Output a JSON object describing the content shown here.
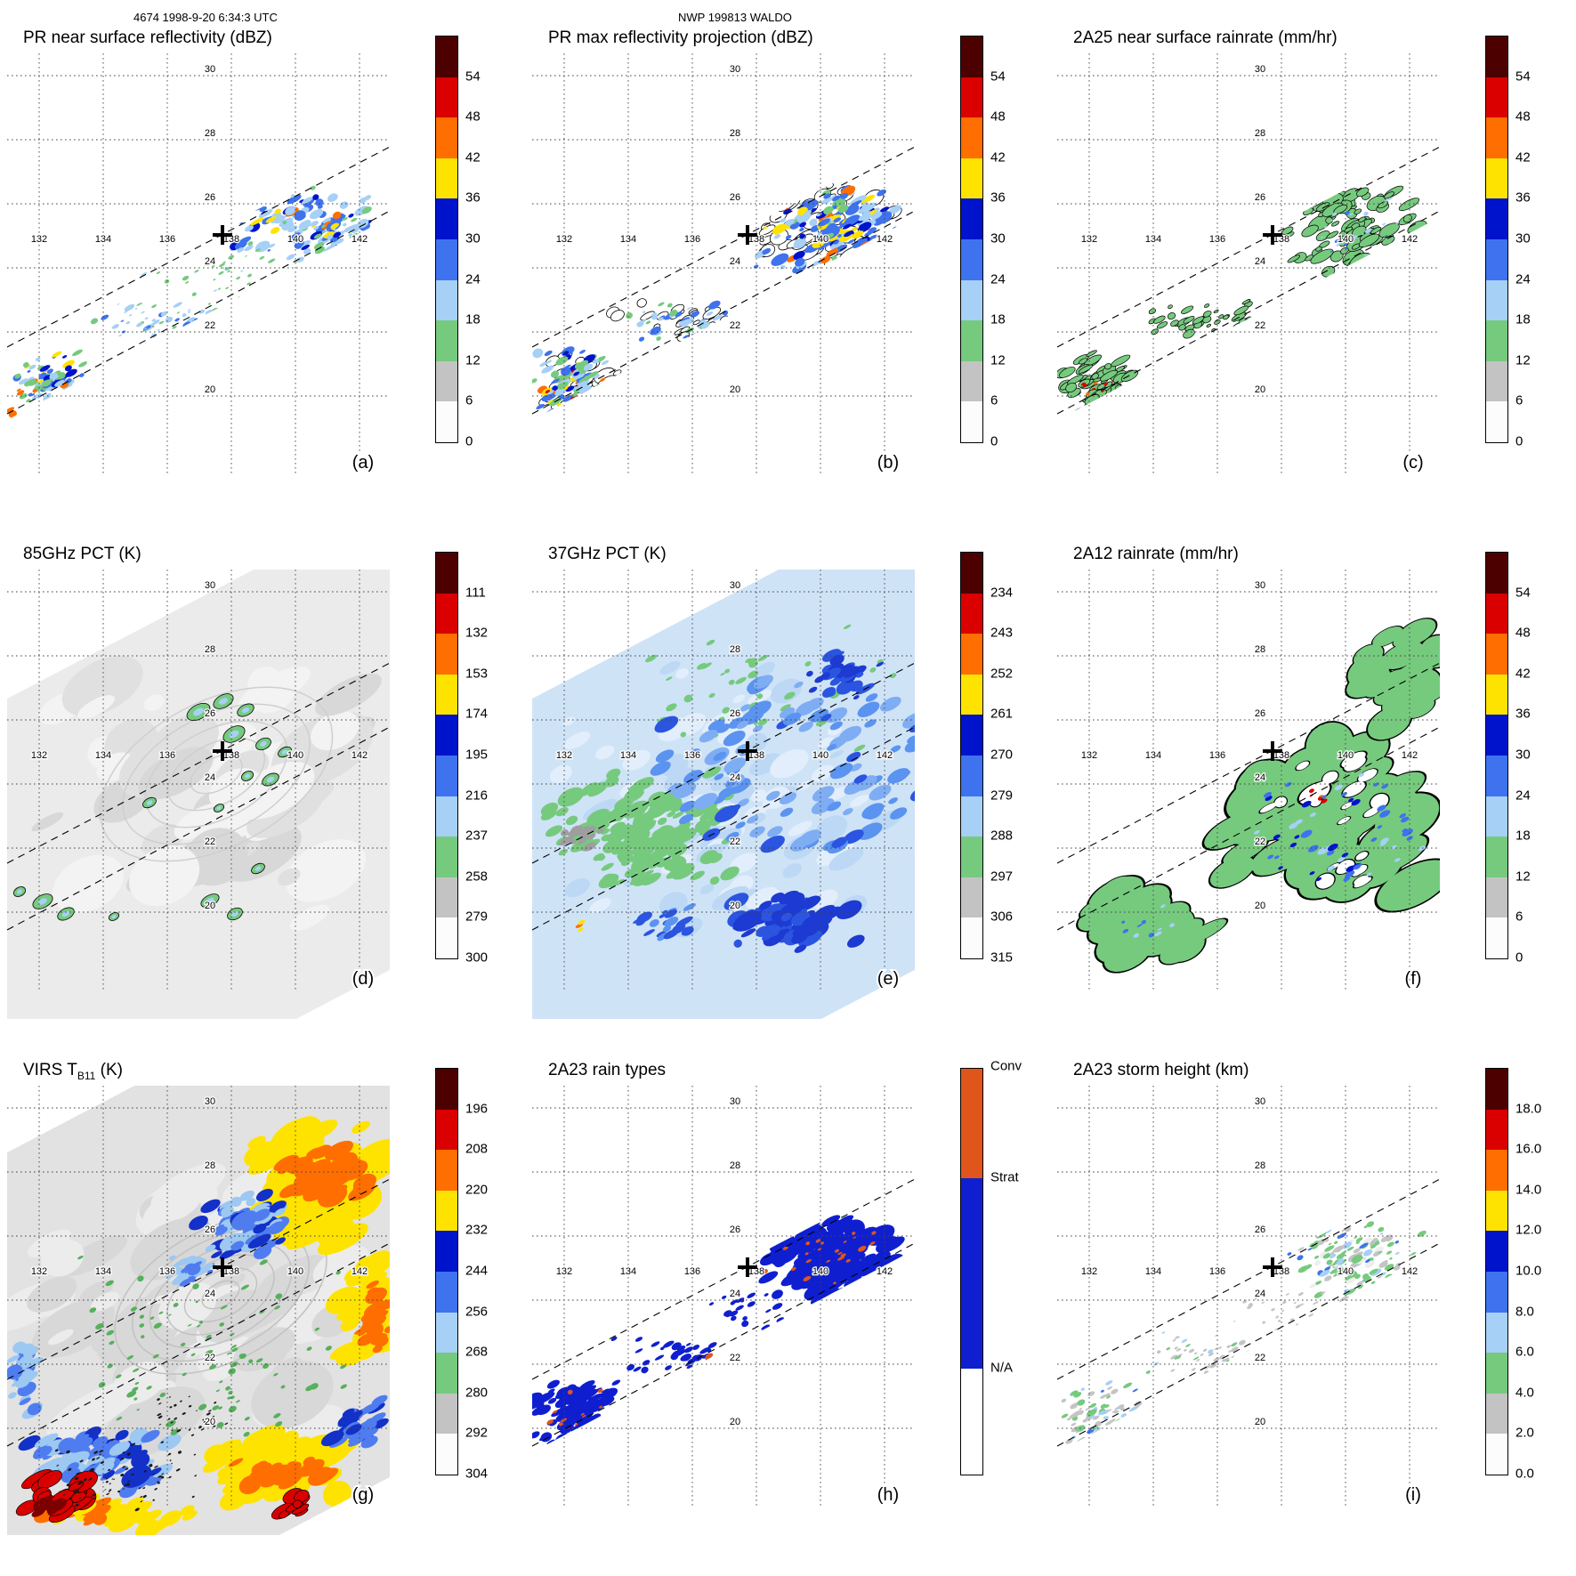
{
  "header": {
    "left": "4674 1998-9-20 6:34:3 UTC",
    "center": "NWP 199813 WALDO"
  },
  "axes": {
    "lon_labels": [
      "132",
      "134",
      "136",
      "138",
      "140",
      "142"
    ],
    "lat_labels": [
      "30",
      "28",
      "26",
      "24",
      "22",
      "20"
    ]
  },
  "colors": {
    "scale10": [
      "#4d0000",
      "#da0000",
      "#ff6e00",
      "#ffe300",
      "#0013cc",
      "#3e72ee",
      "#a6d0f6",
      "#76ca7e",
      "#c3c3c3",
      "#fcfcfc"
    ]
  },
  "raintype_bar": {
    "segments": [
      {
        "label": "Conv",
        "color": "#e0551a",
        "frac": 0.27
      },
      {
        "label": "Strat",
        "color": "#0f1fd0",
        "frac": 0.47
      },
      {
        "label": "N/A",
        "color": "#ffffff",
        "frac": 0.26
      }
    ],
    "labels": [
      "Conv",
      "Strat",
      "N/A"
    ]
  },
  "panels": [
    {
      "id": "a",
      "letter": "(a)",
      "title": "PR near surface reflectivity (dBZ)",
      "cbar_ticks": [
        "54",
        "48",
        "42",
        "36",
        "30",
        "24",
        "18",
        "12",
        "6",
        "0"
      ]
    },
    {
      "id": "b",
      "letter": "(b)",
      "title": "PR max reflectivity projection (dBZ)",
      "cbar_ticks": [
        "54",
        "48",
        "42",
        "36",
        "30",
        "24",
        "18",
        "12",
        "6",
        "0"
      ]
    },
    {
      "id": "c",
      "letter": "(c)",
      "title": "2A25 near surface rainrate (mm/hr)",
      "cbar_ticks": [
        "54",
        "48",
        "42",
        "36",
        "30",
        "24",
        "18",
        "12",
        "6",
        "0"
      ]
    },
    {
      "id": "d",
      "letter": "(d)",
      "title": "85GHz PCT (K)",
      "cbar_ticks": [
        "111",
        "132",
        "153",
        "174",
        "195",
        "216",
        "237",
        "258",
        "279",
        "300"
      ]
    },
    {
      "id": "e",
      "letter": "(e)",
      "title": "37GHz PCT (K)",
      "cbar_ticks": [
        "234",
        "243",
        "252",
        "261",
        "270",
        "279",
        "288",
        "297",
        "306",
        "315"
      ]
    },
    {
      "id": "f",
      "letter": "(f)",
      "title": "2A12 rainrate (mm/hr)",
      "cbar_ticks": [
        "54",
        "48",
        "42",
        "36",
        "30",
        "24",
        "18",
        "12",
        "6",
        "0"
      ]
    },
    {
      "id": "g",
      "letter": "(g)",
      "title": "VIRS T",
      "title_sub": "B11",
      "title_post": " (K)",
      "cbar_ticks": [
        "196",
        "208",
        "220",
        "232",
        "244",
        "256",
        "268",
        "280",
        "292",
        "304"
      ]
    },
    {
      "id": "h",
      "letter": "(h)",
      "title": "2A23 rain types",
      "cbar_type": "raintypes"
    },
    {
      "id": "i",
      "letter": "(i)",
      "title": "2A23 storm height (km)",
      "cbar_ticks": [
        "18.0",
        "16.0",
        "14.0",
        "12.0",
        "10.0",
        "8.0",
        "6.0",
        "4.0",
        "2.0",
        "0.0"
      ]
    }
  ],
  "storm_center_marker": {
    "approx_lon": 136.8,
    "approx_lat": 24.6
  },
  "chart_data": [
    {
      "panel": "(a)",
      "type": "heatmap",
      "title": "PR near surface reflectivity (dBZ)",
      "units": "dBZ",
      "colorbar_ticks": [
        54,
        48,
        42,
        36,
        30,
        24,
        18,
        12,
        6,
        0
      ],
      "lon_ticks": [
        132,
        134,
        136,
        138,
        140,
        142
      ],
      "lat_ticks": [
        30,
        28,
        26,
        24,
        22,
        20
      ],
      "swath": "narrow diagonal PR swath"
    },
    {
      "panel": "(b)",
      "type": "heatmap",
      "title": "PR max reflectivity projection (dBZ)",
      "units": "dBZ",
      "colorbar_ticks": [
        54,
        48,
        42,
        36,
        30,
        24,
        18,
        12,
        6,
        0
      ],
      "lon_ticks": [
        132,
        134,
        136,
        138,
        140,
        142
      ],
      "lat_ticks": [
        30,
        28,
        26,
        24,
        22,
        20
      ],
      "swath": "narrow diagonal PR swath"
    },
    {
      "panel": "(c)",
      "type": "heatmap",
      "title": "2A25 near surface rainrate (mm/hr)",
      "units": "mm/hr",
      "colorbar_ticks": [
        54,
        48,
        42,
        36,
        30,
        24,
        18,
        12,
        6,
        0
      ],
      "lon_ticks": [
        132,
        134,
        136,
        138,
        140,
        142
      ],
      "lat_ticks": [
        30,
        28,
        26,
        24,
        22,
        20
      ],
      "swath": "narrow diagonal PR swath"
    },
    {
      "panel": "(d)",
      "type": "heatmap",
      "title": "85GHz PCT (K)",
      "units": "K",
      "colorbar_ticks": [
        111,
        132,
        153,
        174,
        195,
        216,
        237,
        258,
        279,
        300
      ],
      "lon_ticks": [
        132,
        134,
        136,
        138,
        140,
        142
      ],
      "lat_ticks": [
        30,
        28,
        26,
        24,
        22,
        20
      ],
      "swath": "wide diagonal TMI swath"
    },
    {
      "panel": "(e)",
      "type": "heatmap",
      "title": "37GHz PCT (K)",
      "units": "K",
      "colorbar_ticks": [
        234,
        243,
        252,
        261,
        270,
        279,
        288,
        297,
        306,
        315
      ],
      "lon_ticks": [
        132,
        134,
        136,
        138,
        140,
        142
      ],
      "lat_ticks": [
        30,
        28,
        26,
        24,
        22,
        20
      ],
      "swath": "wide diagonal TMI swath"
    },
    {
      "panel": "(f)",
      "type": "heatmap",
      "title": "2A12 rainrate (mm/hr)",
      "units": "mm/hr",
      "colorbar_ticks": [
        54,
        48,
        42,
        36,
        30,
        24,
        18,
        12,
        6,
        0
      ],
      "lon_ticks": [
        132,
        134,
        136,
        138,
        140,
        142
      ],
      "lat_ticks": [
        30,
        28,
        26,
        24,
        22,
        20
      ],
      "swath": "wide diagonal TMI swath"
    },
    {
      "panel": "(g)",
      "type": "heatmap",
      "title": "VIRS TB11 (K)",
      "units": "K",
      "colorbar_ticks": [
        196,
        208,
        220,
        232,
        244,
        256,
        268,
        280,
        292,
        304
      ],
      "lon_ticks": [
        132,
        134,
        136,
        138,
        140,
        142
      ],
      "lat_ticks": [
        30,
        28,
        26,
        24,
        22,
        20
      ],
      "swath": "full VIRS scene"
    },
    {
      "panel": "(h)",
      "type": "categorical-map",
      "title": "2A23 rain types",
      "categories": [
        "Conv",
        "Strat",
        "N/A"
      ],
      "lon_ticks": [
        132,
        134,
        136,
        138,
        140,
        142
      ],
      "lat_ticks": [
        30,
        28,
        26,
        24,
        22,
        20
      ],
      "swath": "narrow diagonal PR swath"
    },
    {
      "panel": "(i)",
      "type": "heatmap",
      "title": "2A23 storm height (km)",
      "units": "km",
      "colorbar_ticks": [
        18.0,
        16.0,
        14.0,
        12.0,
        10.0,
        8.0,
        6.0,
        4.0,
        2.0,
        0.0
      ],
      "lon_ticks": [
        132,
        134,
        136,
        138,
        140,
        142
      ],
      "lat_ticks": [
        30,
        28,
        26,
        24,
        22,
        20
      ],
      "swath": "narrow diagonal PR swath"
    }
  ]
}
